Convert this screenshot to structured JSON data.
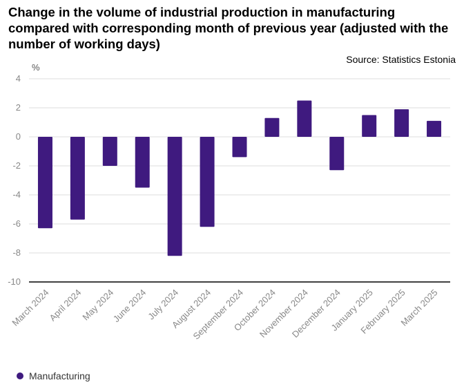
{
  "title": "Change in the volume of industrial production in manufacturing compared with corresponding month of previous year (adjusted with the number of working days)",
  "source": "Source: Statistics Estonia",
  "colors": {
    "bar": "#3f1a7f",
    "grid": "#dcdcdc",
    "axis": "#000000",
    "tick": "#888888"
  },
  "chart_data": {
    "type": "bar",
    "title": "Change in the volume of industrial production in manufacturing compared with corresponding month of previous year (adjusted with the number of working days)",
    "ylabel": "%",
    "xlabel": "",
    "ylim": [
      -10,
      4
    ],
    "yticks": [
      4,
      2,
      0,
      -2,
      -4,
      -6,
      -8,
      -10
    ],
    "grid": true,
    "legend_position": "bottom-left",
    "categories": [
      "March 2024",
      "April 2024",
      "May 2024",
      "June 2024",
      "July 2024",
      "August 2024",
      "September 2024",
      "October 2024",
      "November 2024",
      "December 2024",
      "January 2025",
      "February 2025",
      "March 2025"
    ],
    "series": [
      {
        "name": "Manufacturing",
        "values": [
          -6.3,
          -5.7,
          -2.0,
          -3.5,
          -8.2,
          -6.2,
          -1.4,
          1.3,
          2.5,
          -2.3,
          1.5,
          1.9,
          1.1
        ]
      }
    ]
  }
}
